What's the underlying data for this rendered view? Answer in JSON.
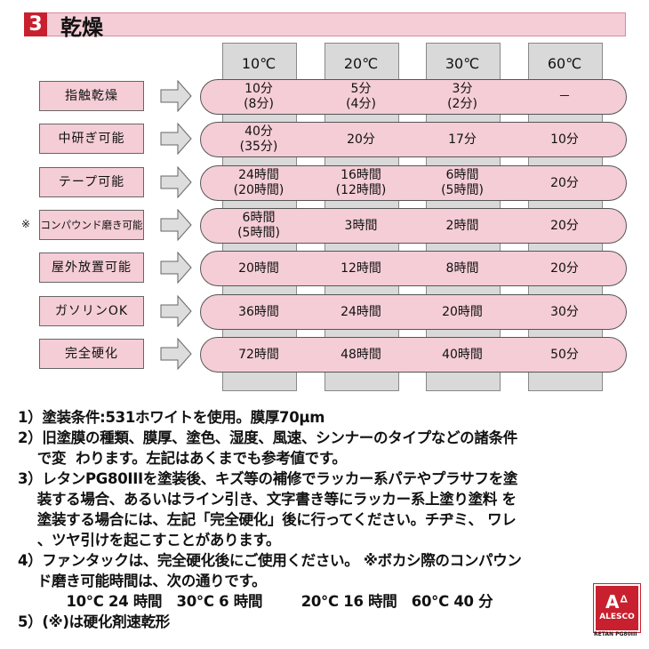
{
  "header": {
    "number": "3",
    "title": "乾燥"
  },
  "columns": [
    "10℃",
    "20℃",
    "30℃",
    "60℃"
  ],
  "rows": [
    {
      "label": "指触乾燥",
      "mark": "",
      "values": [
        [
          "10分",
          "(8分)"
        ],
        [
          "5分",
          "(4分)"
        ],
        [
          "3分",
          "(2分)"
        ],
        [
          "－"
        ]
      ]
    },
    {
      "label": "中研ぎ可能",
      "mark": "",
      "values": [
        [
          "40分",
          "(35分)"
        ],
        [
          "20分"
        ],
        [
          "17分"
        ],
        [
          "10分"
        ]
      ]
    },
    {
      "label": "テープ可能",
      "mark": "",
      "values": [
        [
          "24時間",
          "(20時間)"
        ],
        [
          "16時間",
          "(12時間)"
        ],
        [
          "6時間",
          "(5時間)"
        ],
        [
          "20分"
        ]
      ]
    },
    {
      "label": "コンパウンド磨き可能",
      "mark": "※",
      "values": [
        [
          "6時間",
          "(5時間)"
        ],
        [
          "3時間"
        ],
        [
          "2時間"
        ],
        [
          "20分"
        ]
      ]
    },
    {
      "label": "屋外放置可能",
      "mark": "",
      "values": [
        [
          "20時間"
        ],
        [
          "12時間"
        ],
        [
          "8時間"
        ],
        [
          "20分"
        ]
      ]
    },
    {
      "label": "ガソリンOK",
      "mark": "",
      "values": [
        [
          "36時間"
        ],
        [
          "24時間"
        ],
        [
          "20時間"
        ],
        [
          "30分"
        ]
      ]
    },
    {
      "label": "完全硬化",
      "mark": "",
      "values": [
        [
          "72時間"
        ],
        [
          "48時間"
        ],
        [
          "40時間"
        ],
        [
          "50分"
        ]
      ]
    }
  ],
  "notes": [
    "1）塗装条件:531ホワイトを使用。膜厚70μm",
    "2）旧塗膜の種類、膜厚、塗色、湿度、風速、シンナーのタイプなどの諸条件",
    "    で変  わります。左記はあくまでも参考値です。",
    "3）レタンPG80IIIを塗装後、キズ等の補修でラッカー系パテやプラサフを塗",
    "    装する場合、あるいはライン引き、文字書き等にラッカー系上塗り塗料 を",
    "    塗装する場合には、左記「完全硬化」後に行ってください。チヂミ、 ワレ",
    "    、ツヤ引けを起こすことがあります。",
    "4）ファンタックは、完全硬化後にご使用ください。 ※ボカシ際のコンパウン",
    "    ド磨き可能時間は、次の通りです。",
    "          10°C 24 時間   30°C 6 時間        20°C 16 時間   60°C 40 分",
    "5）(※)は硬化剤速乾形"
  ],
  "logo": {
    "mark": "Aᐞ",
    "name": "ALESCO",
    "product": "RETAN PG80III"
  },
  "colors": {
    "accent": "#c8202e",
    "pink": "#f4cdd6",
    "gray": "#d9d9d9"
  }
}
